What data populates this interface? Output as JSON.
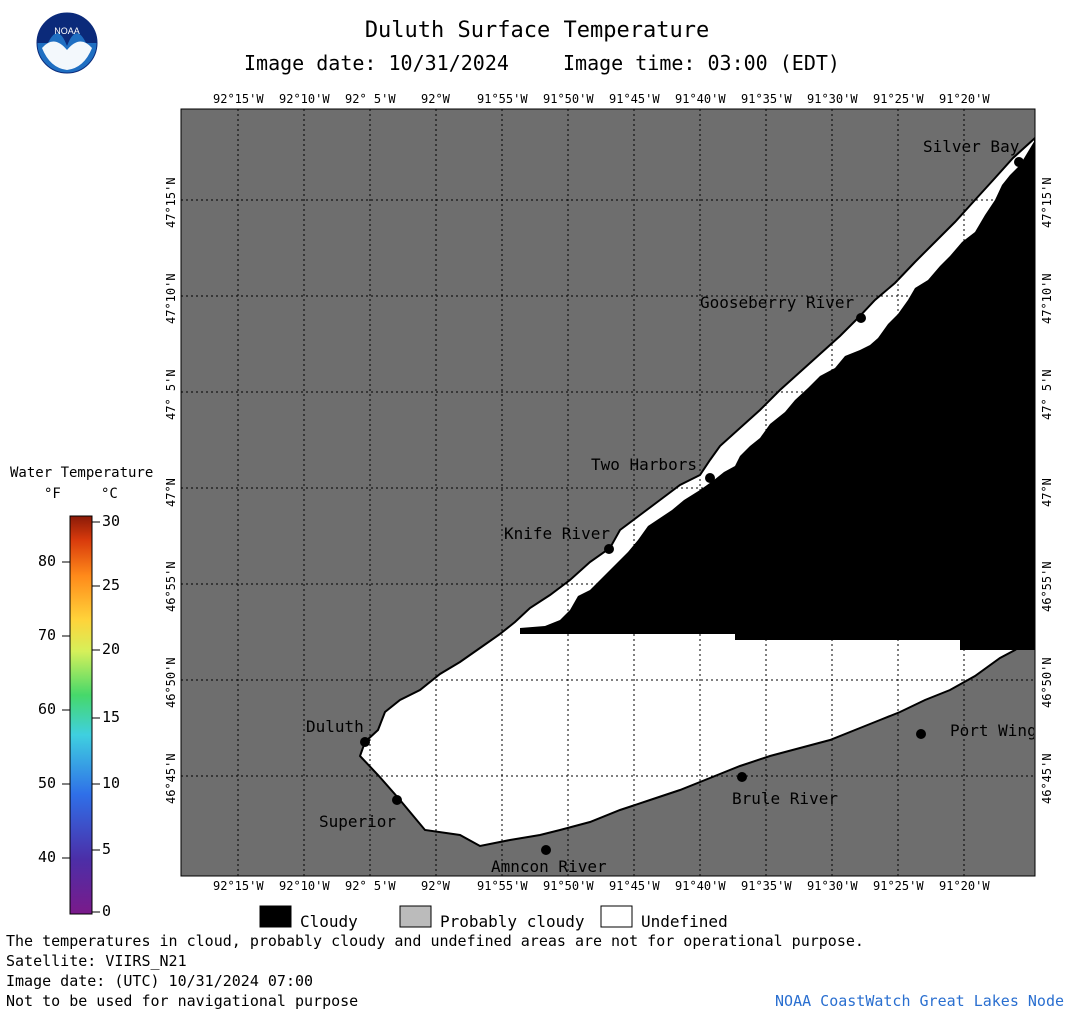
{
  "header": {
    "title": "Duluth Surface Temperature",
    "image_date": "Image date: 10/31/2024",
    "image_time": "Image time: 03:00 (EDT)",
    "logo_text": "NOAA"
  },
  "map": {
    "lon_ticks": [
      "92°15'W",
      "92°10'W",
      "92° 5'W",
      "92°W",
      "91°55'W",
      "91°50'W",
      "91°45'W",
      "91°40'W",
      "91°35'W",
      "91°30'W",
      "91°25'W",
      "91°20'W"
    ],
    "lat_ticks": [
      "47°15'N",
      "47°10'N",
      "47° 5'N",
      "47°N",
      "46°55'N",
      "46°50'N",
      "46°45'N"
    ],
    "places": [
      "Silver Bay",
      "Gooseberry River",
      "Two Harbors",
      "Knife River",
      "Duluth",
      "Superior",
      "Amncon River",
      "Brule River",
      "Port Wing"
    ],
    "colors": {
      "land": "#6e6e6e",
      "cloudy": "#000000",
      "undefined": "#ffffff",
      "grid": "#000000"
    }
  },
  "colorbar": {
    "title": "Water Temperature",
    "unit_f": "°F",
    "unit_c": "°C",
    "f_ticks": [
      "80",
      "70",
      "60",
      "50",
      "40"
    ],
    "c_ticks": [
      "30",
      "25",
      "20",
      "15",
      "10",
      "5",
      "0"
    ]
  },
  "legend": {
    "items": [
      {
        "label": "Cloudy",
        "color": "#000000"
      },
      {
        "label": "Probably cloudy",
        "color": "#bbbbbb"
      },
      {
        "label": "Undefined",
        "color": "#ffffff"
      }
    ]
  },
  "footer": {
    "note": "The temperatures in cloud, probably cloudy and undefined areas are not for operational purpose.",
    "satellite": "Satellite: VIIRS_N21",
    "utc_date": "Image date: (UTC) 10/31/2024  07:00",
    "disclaimer": "Not to be used for navigational purpose",
    "credit": "NOAA CoastWatch Great Lakes Node"
  }
}
